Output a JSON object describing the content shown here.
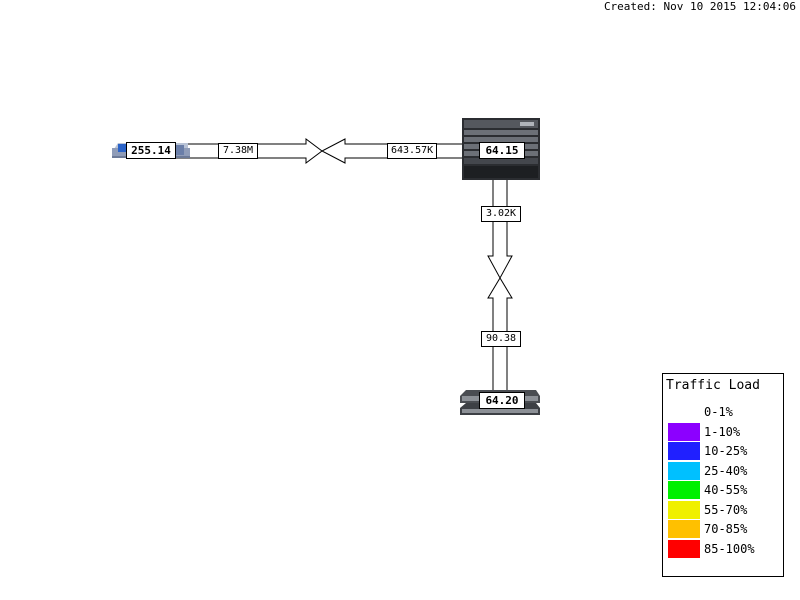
{
  "header": {
    "created": "Created: Nov 10 2015 12:04:06"
  },
  "nodes": {
    "left_device": {
      "label": "255.14",
      "icon": "patch-panel-icon"
    },
    "top_right_device": {
      "label": "64.15",
      "icon": "chassis-switch-icon"
    },
    "bottom_device": {
      "label": "64.20",
      "icon": "stacked-switch-icon"
    }
  },
  "links": {
    "horizontal": {
      "left_label": "7.38M",
      "right_label": "643.57K",
      "fill": "#ffffff"
    },
    "vertical": {
      "top_label": "3.02K",
      "bottom_label": "90.38",
      "fill": "#ffffff"
    }
  },
  "legend": {
    "title": "Traffic Load",
    "items": [
      {
        "label": "0-1%",
        "color": "#ffffff"
      },
      {
        "label": "1-10%",
        "color": "#8c00ff"
      },
      {
        "label": "10-25%",
        "color": "#2020ff"
      },
      {
        "label": "25-40%",
        "color": "#00c0ff"
      },
      {
        "label": "40-55%",
        "color": "#00f000"
      },
      {
        "label": "55-70%",
        "color": "#f0f000"
      },
      {
        "label": "70-85%",
        "color": "#ffc000"
      },
      {
        "label": "85-100%",
        "color": "#ff0000"
      }
    ]
  }
}
